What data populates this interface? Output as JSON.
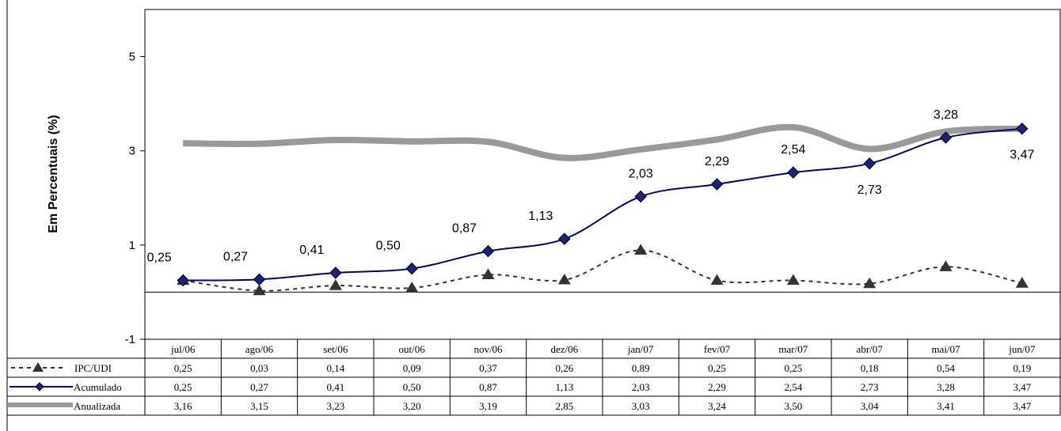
{
  "chart_data": {
    "type": "line",
    "ylabel": "Em   Percentuais (%)",
    "ylim": [
      -1,
      6
    ],
    "yticks": [
      "5",
      "3",
      "1",
      "-1"
    ],
    "categories": [
      "jul/06",
      "ago/06",
      "set/06",
      "out/06",
      "nov/06",
      "dez/06",
      "jan/07",
      "fev/07",
      "mar/07",
      "abr/07",
      "mai/07",
      "jun/07"
    ],
    "series": [
      {
        "name": "IPC/UDI",
        "values": [
          0.25,
          0.03,
          0.14,
          0.09,
          0.37,
          0.26,
          0.89,
          0.25,
          0.25,
          0.18,
          0.54,
          0.19
        ],
        "labels": [
          "0,25",
          "0,03",
          "0,14",
          "0,09",
          "0,37",
          "0,26",
          "0,89",
          "0,25",
          "0,25",
          "0,18",
          "0,54",
          "0,19"
        ],
        "color": "#333333",
        "style": "dashed",
        "marker": "triangle"
      },
      {
        "name": "Acumulado",
        "values": [
          0.25,
          0.27,
          0.41,
          0.5,
          0.87,
          1.13,
          2.03,
          2.29,
          2.54,
          2.73,
          3.28,
          3.47
        ],
        "labels": [
          "0,25",
          "0,27",
          "0,41",
          "0,50",
          "0,87",
          "1,13",
          "2,03",
          "2,29",
          "2,54",
          "2,73",
          "3,28",
          "3,47"
        ],
        "color": "#000080",
        "style": "solid",
        "marker": "diamond",
        "marker_color": "#1a237e"
      },
      {
        "name": "Anualizada",
        "values": [
          3.16,
          3.15,
          3.23,
          3.2,
          3.19,
          2.85,
          3.03,
          3.24,
          3.5,
          3.04,
          3.41,
          3.47
        ],
        "labels": [
          "3,16",
          "3,15",
          "3,23",
          "3,20",
          "3,19",
          "2,85",
          "3,03",
          "3,24",
          "3,50",
          "3,04",
          "3,41",
          "3,47"
        ],
        "color": "#999999",
        "style": "thick"
      }
    ],
    "data_labels_series": "Acumulado",
    "data_table": true,
    "grid": false
  }
}
